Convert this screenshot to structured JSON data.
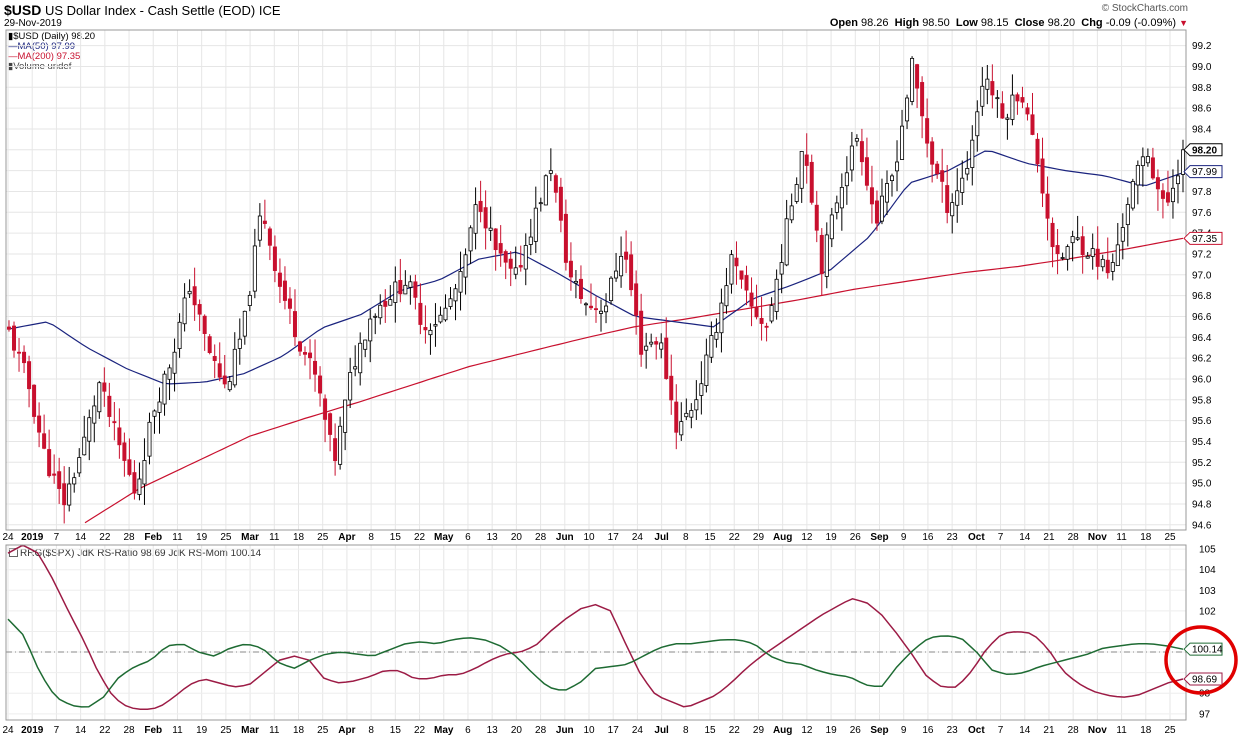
{
  "header": {
    "symbol": "$USD",
    "name": "US Dollar Index - Cash Settle (EOD)",
    "exchange": "ICE",
    "date": "29-Nov-2019",
    "source": "© StockCharts.com",
    "open_label": "Open",
    "open": "98.26",
    "high_label": "High",
    "high": "98.50",
    "low_label": "Low",
    "low": "98.15",
    "close_label": "Close",
    "close": "98.20",
    "chg_label": "Chg",
    "chg": "-0.09 (-0.09%)"
  },
  "legend": {
    "price": "$USD (Daily) 98.20",
    "ma50": "MA(50) 97.99",
    "ma200": "MA(200) 97.35",
    "volume": "Volume undef"
  },
  "legend2": {
    "text": "RRG($SPX) JdK RS-Ratio 98.69 JdK RS-Mom 100.14"
  },
  "colors": {
    "up": "#000000",
    "down": "#c8102e",
    "ma50": "#1a237e",
    "ma200": "#c8102e",
    "rs_ratio": "#9c1b45",
    "rs_mom": "#1e6b33",
    "highlight": "#e00000"
  },
  "chart_data": [
    {
      "type": "candlestick",
      "ylim": [
        94.55,
        99.35
      ],
      "y_ticks": [
        94.6,
        94.8,
        95.0,
        95.2,
        95.4,
        95.6,
        95.8,
        96.0,
        96.2,
        96.4,
        96.6,
        96.8,
        97.0,
        97.2,
        97.4,
        97.6,
        97.8,
        98.0,
        98.2,
        98.4,
        98.6,
        98.8,
        99.0,
        99.2
      ],
      "x_ticks": [
        "24",
        "2019",
        "7",
        "14",
        "22",
        "28",
        "Feb",
        "11",
        "19",
        "25",
        "Mar",
        "11",
        "18",
        "25",
        "Apr",
        "8",
        "15",
        "22",
        "May",
        "6",
        "13",
        "20",
        "28",
        "Jun",
        "10",
        "17",
        "24",
        "Jul",
        "8",
        "15",
        "22",
        "29",
        "Aug",
        "12",
        "19",
        "26",
        "Sep",
        "9",
        "16",
        "23",
        "Oct",
        "7",
        "14",
        "21",
        "28",
        "Nov",
        "11",
        "18",
        "25"
      ],
      "close_anchors": [
        96.45,
        96.0,
        95.25,
        94.8,
        95.3,
        95.95,
        95.4,
        94.9,
        95.7,
        96.2,
        96.9,
        96.3,
        95.9,
        96.5,
        97.65,
        96.9,
        96.4,
        96.0,
        95.2,
        96.1,
        96.6,
        96.8,
        96.95,
        96.5,
        96.6,
        96.95,
        97.75,
        97.2,
        96.95,
        97.5,
        98.05,
        97.0,
        96.7,
        96.7,
        97.3,
        96.3,
        96.4,
        95.5,
        95.8,
        96.4,
        97.15,
        96.7,
        96.5,
        97.4,
        98.3,
        97.1,
        97.85,
        98.35,
        97.5,
        98.0,
        99.0,
        98.15,
        97.65,
        98.0,
        98.95,
        98.5,
        98.8,
        98.05,
        97.1,
        97.35,
        97.2,
        97.0,
        97.75,
        98.2,
        97.6,
        98.2
      ],
      "close_label": "98.20",
      "ma50_label": "97.99",
      "ma200_label": "97.35",
      "ma50_anchors": [
        96.48,
        96.55,
        96.3,
        96.1,
        95.95,
        95.97,
        96.05,
        96.22,
        96.49,
        96.62,
        96.85,
        96.95,
        97.15,
        97.22,
        97.02,
        96.8,
        96.6,
        96.55,
        96.5,
        96.77,
        96.9,
        97.05,
        97.37,
        97.88,
        98.0,
        98.2,
        98.07,
        98.0,
        97.95,
        97.85,
        97.98
      ],
      "ma200_anchors": [
        94.62,
        94.95,
        95.2,
        95.45,
        95.62,
        95.78,
        95.95,
        96.12,
        96.25,
        96.38,
        96.5,
        96.58,
        96.67,
        96.76,
        96.86,
        96.94,
        97.02,
        97.08,
        97.16,
        97.25,
        97.35
      ]
    },
    {
      "type": "line",
      "ylim": [
        96.7,
        105.2
      ],
      "y_ticks": [
        97,
        98,
        99,
        100,
        101,
        102,
        103,
        104,
        105
      ],
      "y_tick_labels": [
        "97",
        "98",
        "",
        "",
        "",
        "102",
        "103",
        "104",
        "105"
      ],
      "x_ticks": [
        "24",
        "2019",
        "7",
        "14",
        "22",
        "28",
        "Feb",
        "11",
        "19",
        "25",
        "Mar",
        "11",
        "18",
        "25",
        "Apr",
        "8",
        "15",
        "22",
        "May",
        "6",
        "13",
        "20",
        "28",
        "Jun",
        "10",
        "17",
        "24",
        "Jul",
        "8",
        "15",
        "22",
        "29",
        "Aug",
        "12",
        "19",
        "26",
        "Sep",
        "9",
        "16",
        "23",
        "Oct",
        "7",
        "14",
        "21",
        "28",
        "Nov",
        "11",
        "18",
        "25"
      ],
      "reference_line": 100,
      "series": [
        {
          "name": "JdK RS-Ratio",
          "label": "98.69",
          "values": [
            104.8,
            105.2,
            104.8,
            103.5,
            102.0,
            100.6,
            99.0,
            97.8,
            97.3,
            97.2,
            97.3,
            97.8,
            98.4,
            98.7,
            98.5,
            98.3,
            98.4,
            99.0,
            99.6,
            99.8,
            99.6,
            98.7,
            98.5,
            98.6,
            98.8,
            99.1,
            99.1,
            98.7,
            98.7,
            98.9,
            98.9,
            99.2,
            99.6,
            99.9,
            100.0,
            100.3,
            101.0,
            101.6,
            102.1,
            102.3,
            102.0,
            100.4,
            98.9,
            97.9,
            97.6,
            97.3,
            97.6,
            97.9,
            98.5,
            99.2,
            99.8,
            100.3,
            100.8,
            101.3,
            101.8,
            102.2,
            102.6,
            102.4,
            101.8,
            100.9,
            99.9,
            98.8,
            98.3,
            98.3,
            99.1,
            100.2,
            100.9,
            101.0,
            100.9,
            100.2,
            99.1,
            98.5,
            98.1,
            97.9,
            97.8,
            97.9,
            98.2,
            98.5,
            98.69
          ]
        },
        {
          "name": "JdK RS-Mom",
          "label": "100.14",
          "values": [
            101.6,
            100.8,
            99.0,
            97.8,
            97.4,
            97.3,
            97.8,
            98.8,
            99.3,
            99.6,
            100.3,
            100.4,
            100.0,
            99.8,
            100.2,
            100.4,
            100.2,
            99.5,
            99.2,
            99.6,
            99.9,
            100.0,
            99.9,
            99.8,
            100.1,
            100.4,
            100.5,
            100.4,
            100.6,
            100.7,
            100.6,
            100.3,
            99.8,
            99.0,
            98.3,
            98.1,
            98.5,
            99.2,
            99.3,
            99.4,
            99.8,
            100.2,
            100.4,
            100.4,
            100.5,
            100.6,
            100.6,
            100.4,
            99.8,
            99.5,
            99.4,
            99.1,
            98.9,
            98.8,
            98.4,
            98.3,
            99.3,
            100.1,
            100.7,
            100.8,
            100.7,
            100.0,
            99.1,
            98.9,
            99.0,
            99.3,
            99.5,
            99.7,
            99.9,
            100.2,
            100.3,
            100.4,
            100.4,
            100.3,
            100.14
          ]
        }
      ]
    }
  ]
}
